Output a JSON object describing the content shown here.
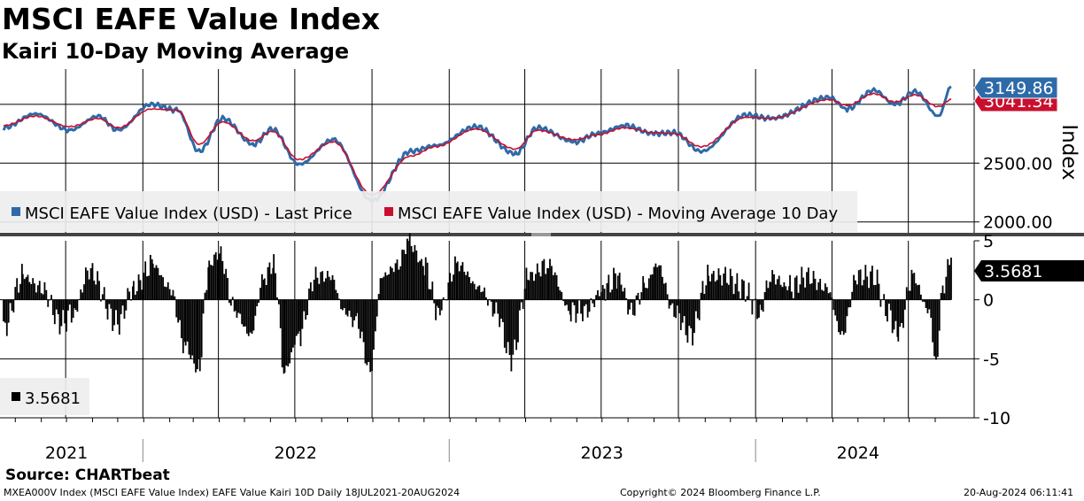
{
  "header": {
    "title": "MSCI EAFE Value Index",
    "subtitle": "Kairi 10-Day Moving Average"
  },
  "footer": {
    "source": "Source: CHARTbeat",
    "ticker_info": "MXEA000V Index (MSCI EAFE Value Index) EAFE Value Kairi 10D  Daily 18JUL2021-20AUG2024",
    "copyright": "Copyright© 2024 Bloomberg Finance L.P.",
    "timestamp": "20-Aug-2024 06:11:41"
  },
  "colors": {
    "price": "#2e6aa8",
    "ma": "#c8102e",
    "kairi": "#000000",
    "grid": "#000000",
    "legend_bg": "#eeeeee"
  },
  "chart_data": [
    {
      "type": "line",
      "panel": "price",
      "ylabel": "Index",
      "ylim": [
        1900,
        3300
      ],
      "yticks": [
        "2000.00",
        "2500.00"
      ],
      "x_range": [
        "2021-07-18",
        "2024-08-20"
      ],
      "x_tick_labels": [
        "2021",
        "2022",
        "2023",
        "2024"
      ],
      "legend": {
        "placement": "bottom-left",
        "entries": [
          "MSCI EAFE Value Index (USD) - Last Price",
          "MSCI EAFE Value Index (USD) - Moving Average 10 Day"
        ]
      },
      "last_price_label": "3149.86",
      "ma_label": "3041.34",
      "series": [
        {
          "name": "MSCI EAFE Value Index (USD) - Last Price",
          "anchors": [
            [
              "2021-07-18",
              2800
            ],
            [
              "2021-08-25",
              2920
            ],
            [
              "2021-10-05",
              2780
            ],
            [
              "2021-11-08",
              2900
            ],
            [
              "2021-12-01",
              2780
            ],
            [
              "2022-01-10",
              3000
            ],
            [
              "2022-02-10",
              2950
            ],
            [
              "2022-03-08",
              2600
            ],
            [
              "2022-04-05",
              2880
            ],
            [
              "2022-05-12",
              2660
            ],
            [
              "2022-06-03",
              2790
            ],
            [
              "2022-07-05",
              2490
            ],
            [
              "2022-08-15",
              2700
            ],
            [
              "2022-09-30",
              2180
            ],
            [
              "2022-11-15",
              2600
            ],
            [
              "2022-12-15",
              2650
            ],
            [
              "2023-02-01",
              2810
            ],
            [
              "2023-03-20",
              2580
            ],
            [
              "2023-04-15",
              2800
            ],
            [
              "2023-05-30",
              2680
            ],
            [
              "2023-06-25",
              2750
            ],
            [
              "2023-07-28",
              2820
            ],
            [
              "2023-09-01",
              2750
            ],
            [
              "2023-09-25",
              2760
            ],
            [
              "2023-10-27",
              2600
            ],
            [
              "2023-12-20",
              2910
            ],
            [
              "2024-01-18",
              2880
            ],
            [
              "2024-03-28",
              3060
            ],
            [
              "2024-04-18",
              2960
            ],
            [
              "2024-05-20",
              3120
            ],
            [
              "2024-06-14",
              3000
            ],
            [
              "2024-07-08",
              3110
            ],
            [
              "2024-08-05",
              2900
            ],
            [
              "2024-08-20",
              3150
            ]
          ]
        },
        {
          "name": "MSCI EAFE Value Index (USD) - Moving Average 10 Day",
          "anchors": [
            [
              "2021-07-18",
              2820
            ],
            [
              "2021-08-25",
              2900
            ],
            [
              "2021-10-05",
              2810
            ],
            [
              "2021-11-08",
              2880
            ],
            [
              "2021-12-01",
              2800
            ],
            [
              "2022-01-10",
              2960
            ],
            [
              "2022-02-10",
              2950
            ],
            [
              "2022-03-08",
              2660
            ],
            [
              "2022-04-05",
              2850
            ],
            [
              "2022-05-12",
              2690
            ],
            [
              "2022-06-03",
              2770
            ],
            [
              "2022-07-05",
              2530
            ],
            [
              "2022-08-15",
              2680
            ],
            [
              "2022-09-30",
              2230
            ],
            [
              "2022-11-15",
              2560
            ],
            [
              "2022-12-15",
              2640
            ],
            [
              "2023-02-01",
              2790
            ],
            [
              "2023-03-20",
              2620
            ],
            [
              "2023-04-15",
              2780
            ],
            [
              "2023-05-30",
              2700
            ],
            [
              "2023-06-25",
              2740
            ],
            [
              "2023-07-28",
              2800
            ],
            [
              "2023-09-01",
              2760
            ],
            [
              "2023-09-25",
              2750
            ],
            [
              "2023-10-27",
              2640
            ],
            [
              "2023-12-20",
              2890
            ],
            [
              "2024-01-18",
              2880
            ],
            [
              "2024-03-28",
              3040
            ],
            [
              "2024-04-18",
              2990
            ],
            [
              "2024-05-20",
              3090
            ],
            [
              "2024-06-14",
              3020
            ],
            [
              "2024-07-08",
              3080
            ],
            [
              "2024-08-05",
              2980
            ],
            [
              "2024-08-20",
              3041
            ]
          ]
        }
      ]
    },
    {
      "type": "bar",
      "panel": "kairi",
      "ylim": [
        -10,
        5
      ],
      "yticks": [
        "5",
        "0",
        "-5",
        "-10"
      ],
      "last_value_label": "3.5681",
      "legend": {
        "placement": "bottom-left",
        "entries": [
          "3.5681"
        ]
      },
      "series": [
        {
          "anchors": [
            [
              "2021-07-18",
              -2.5
            ],
            [
              "2021-08-10",
              2
            ],
            [
              "2021-09-01",
              1
            ],
            [
              "2021-09-25",
              -2
            ],
            [
              "2021-10-10",
              -1
            ],
            [
              "2021-10-28",
              2.5
            ],
            [
              "2021-12-01",
              -2
            ],
            [
              "2021-12-20",
              1
            ],
            [
              "2022-01-12",
              3
            ],
            [
              "2022-02-01",
              1
            ],
            [
              "2022-02-20",
              -4
            ],
            [
              "2022-03-07",
              -6
            ],
            [
              "2022-03-20",
              3
            ],
            [
              "2022-04-01",
              4
            ],
            [
              "2022-04-20",
              -1
            ],
            [
              "2022-05-08",
              -3
            ],
            [
              "2022-05-25",
              2
            ],
            [
              "2022-06-05",
              3
            ],
            [
              "2022-06-18",
              -6
            ],
            [
              "2022-07-05",
              -3
            ],
            [
              "2022-07-25",
              2
            ],
            [
              "2022-08-12",
              2
            ],
            [
              "2022-08-28",
              -1
            ],
            [
              "2022-09-12",
              -2
            ],
            [
              "2022-09-28",
              -6
            ],
            [
              "2022-10-12",
              2
            ],
            [
              "2022-11-01",
              3
            ],
            [
              "2022-11-12",
              5
            ],
            [
              "2022-12-01",
              3
            ],
            [
              "2022-12-18",
              -1
            ],
            [
              "2023-01-10",
              3
            ],
            [
              "2023-02-05",
              1
            ],
            [
              "2023-02-25",
              -1
            ],
            [
              "2023-03-15",
              -5
            ],
            [
              "2023-04-05",
              2
            ],
            [
              "2023-04-28",
              3
            ],
            [
              "2023-05-25",
              -1
            ],
            [
              "2023-06-10",
              -1
            ],
            [
              "2023-07-05",
              1
            ],
            [
              "2023-07-20",
              2
            ],
            [
              "2023-08-05",
              -1
            ],
            [
              "2023-08-20",
              1
            ],
            [
              "2023-09-05",
              3
            ],
            [
              "2023-09-25",
              -1
            ],
            [
              "2023-10-15",
              -3
            ],
            [
              "2023-11-05",
              2
            ],
            [
              "2023-11-25",
              2
            ],
            [
              "2023-12-15",
              1
            ],
            [
              "2024-01-05",
              -1
            ],
            [
              "2024-01-18",
              2
            ],
            [
              "2024-02-10",
              1
            ],
            [
              "2024-03-01",
              2
            ],
            [
              "2024-03-25",
              1
            ],
            [
              "2024-04-12",
              -3
            ],
            [
              "2024-04-30",
              2
            ],
            [
              "2024-05-20",
              2
            ],
            [
              "2024-06-05",
              -1
            ],
            [
              "2024-06-18",
              -3
            ],
            [
              "2024-07-05",
              2
            ],
            [
              "2024-07-25",
              -1
            ],
            [
              "2024-08-02",
              -5.5
            ],
            [
              "2024-08-10",
              1
            ],
            [
              "2024-08-20",
              3.57
            ]
          ]
        }
      ]
    }
  ]
}
